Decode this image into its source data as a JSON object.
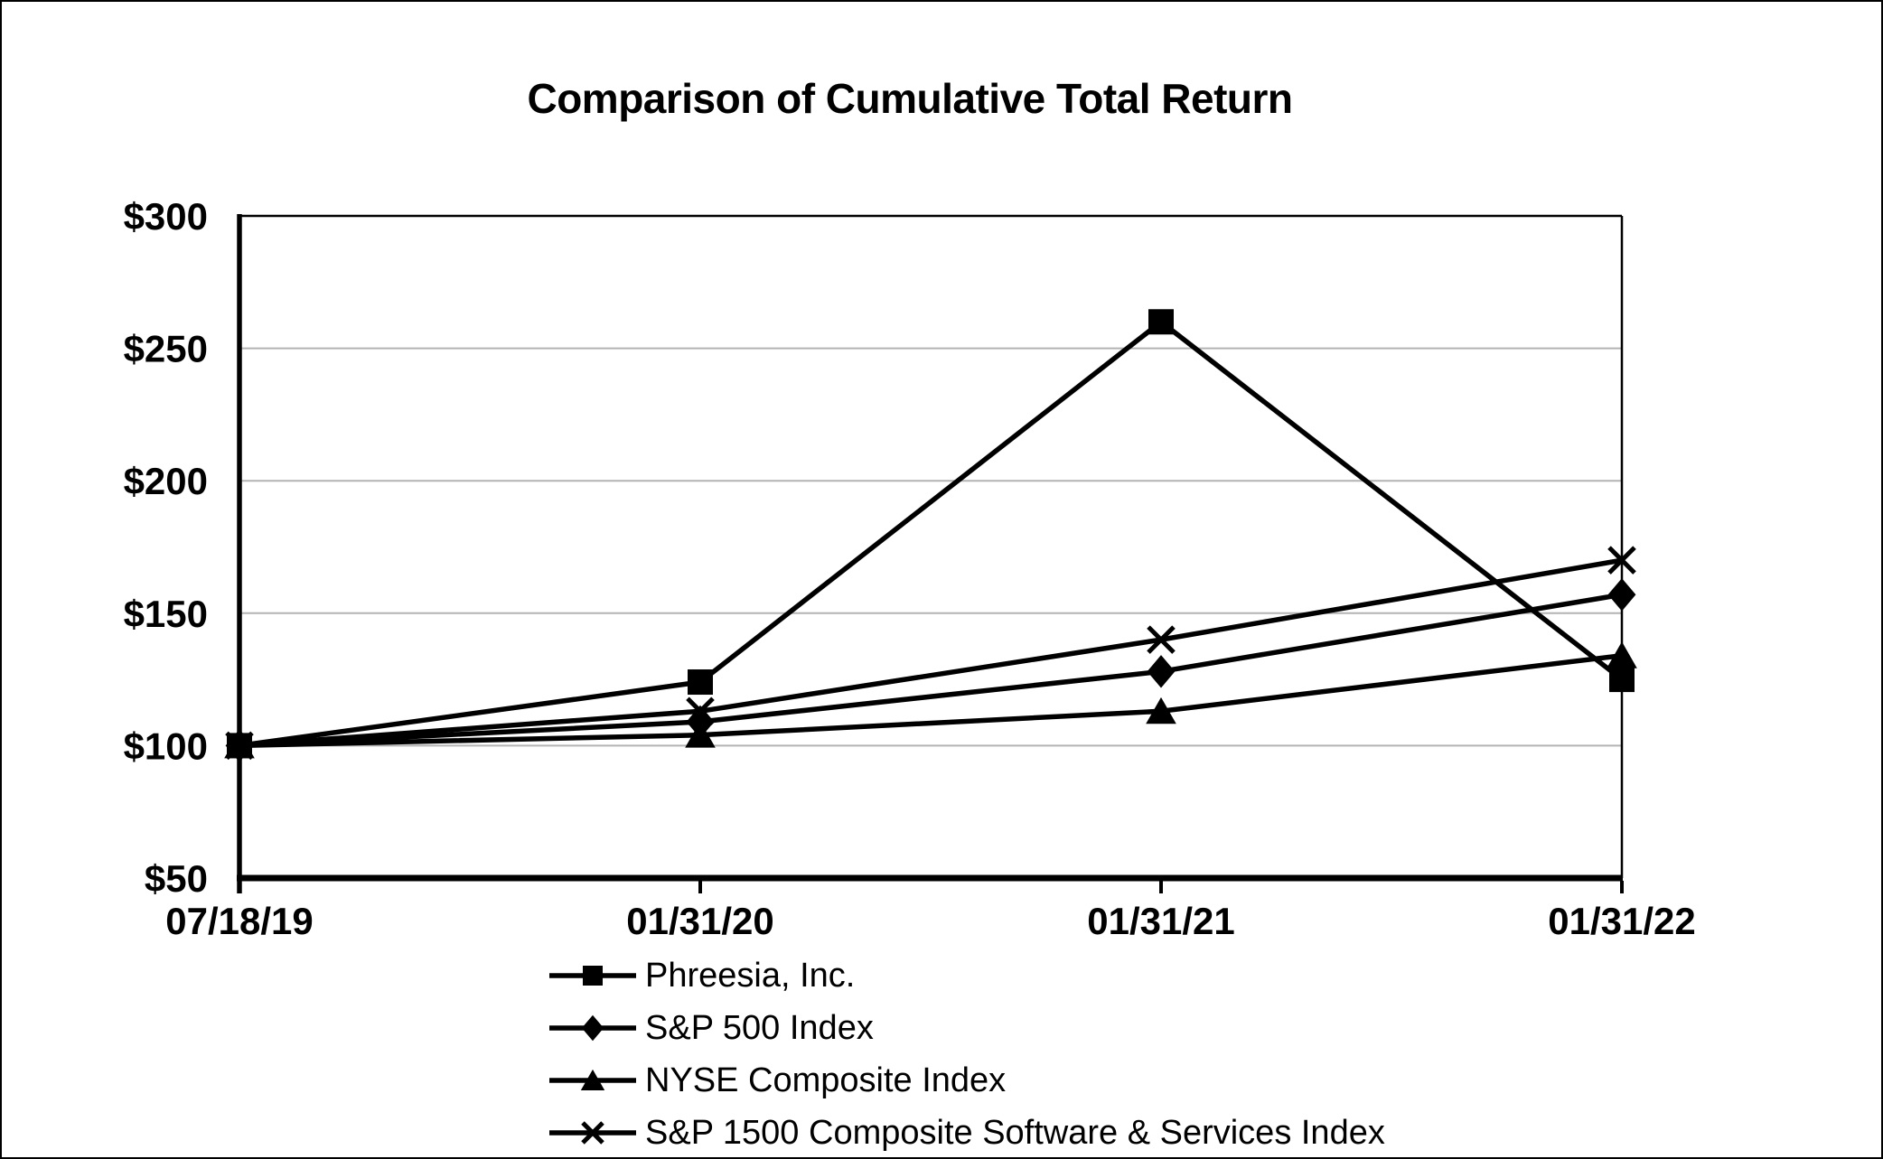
{
  "frame": {
    "background_color": "#ffffff",
    "border_color": "#000000"
  },
  "chart_data": {
    "type": "line",
    "title": "Comparison of Cumulative Total Return",
    "categories": [
      "07/18/19",
      "01/31/20",
      "01/31/21",
      "01/31/22"
    ],
    "series": [
      {
        "name": "Phreesia, Inc.",
        "marker": "square",
        "values": [
          100,
          124,
          260,
          125
        ]
      },
      {
        "name": "S&P 500 Index",
        "marker": "diamond",
        "values": [
          100,
          109,
          128,
          157
        ]
      },
      {
        "name": "NYSE Composite Index",
        "marker": "triangle",
        "values": [
          100,
          104,
          113,
          134
        ]
      },
      {
        "name": "S&P 1500 Composite Software & Services Index",
        "marker": "x",
        "values": [
          100,
          113,
          140,
          170
        ]
      }
    ],
    "ylim": [
      50,
      300
    ],
    "ytick_step": 50,
    "ytick_labels": [
      "$50",
      "$100",
      "$150",
      "$200",
      "$250",
      "$300"
    ],
    "ytick_prefix": "$",
    "grid": "horizontal",
    "legend_position": "bottom-left",
    "line_color": "#000000",
    "grid_color": "#b3b3b3",
    "axis_color": "#000000"
  }
}
